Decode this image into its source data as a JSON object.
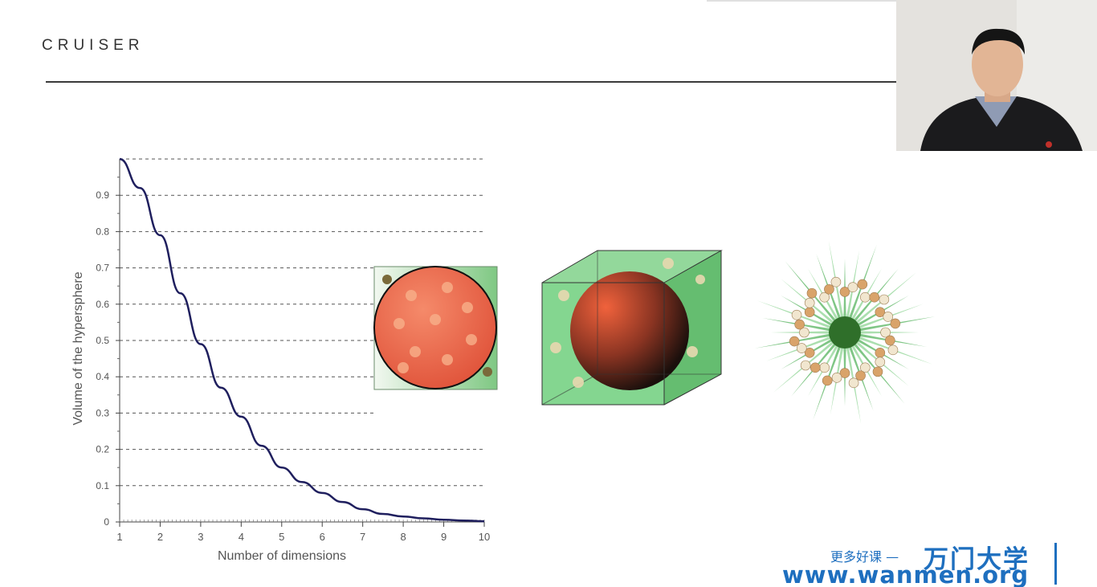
{
  "header": {
    "brand": "CRUISER"
  },
  "watermark": {
    "tagline": "更多好课 —",
    "name": "万门大学",
    "url": "www.wanmen.org",
    "color": "#1e6fbf"
  },
  "illustrations": [
    {
      "name": "2d-circle-in-square"
    },
    {
      "name": "3d-sphere-in-cube"
    },
    {
      "name": "high-dim-spiky-hypercube"
    }
  ],
  "chart_data": {
    "type": "line",
    "xlabel": "Number of dimensions",
    "ylabel": "Volume of the hypersphere",
    "xlim": [
      1,
      10
    ],
    "ylim": [
      0,
      1
    ],
    "x_ticks": [
      1,
      2,
      3,
      4,
      5,
      6,
      7,
      8,
      9,
      10
    ],
    "y_ticks": [
      0,
      0.1,
      0.2,
      0.3,
      0.4,
      0.5,
      0.6,
      0.7,
      0.8,
      0.9
    ],
    "y_tick_labels": [
      "0",
      "0.1",
      "0.2",
      "0.3",
      "0.4",
      "0.5",
      "0.6",
      "0.7",
      "0.8",
      "0.9"
    ],
    "grid": "horizontal dashed",
    "line_color": "#1f1f5e",
    "series": [
      {
        "x": [
          1,
          1.5,
          2,
          2.5,
          3,
          3.5,
          4,
          4.5,
          5,
          5.5,
          6,
          6.5,
          7,
          7.5,
          8,
          8.5,
          9,
          9.5,
          10
        ],
        "values": [
          1.0,
          0.92,
          0.79,
          0.63,
          0.49,
          0.37,
          0.29,
          0.21,
          0.15,
          0.11,
          0.08,
          0.055,
          0.035,
          0.022,
          0.015,
          0.01,
          0.006,
          0.004,
          0.002
        ]
      }
    ]
  }
}
